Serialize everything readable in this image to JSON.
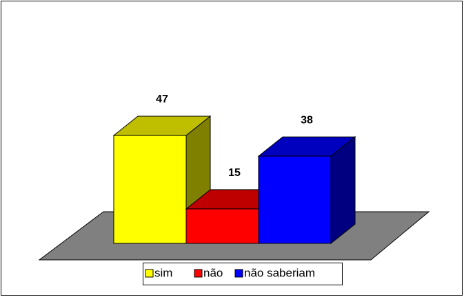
{
  "chart_data": {
    "type": "bar",
    "series": [
      {
        "name": "sim",
        "color": "#ffff00",
        "values": [
          47
        ]
      },
      {
        "name": "não",
        "color": "#ff0000",
        "values": [
          15
        ]
      },
      {
        "name": "não saberiam",
        "color": "#0000ff",
        "values": [
          38
        ]
      }
    ]
  }
}
